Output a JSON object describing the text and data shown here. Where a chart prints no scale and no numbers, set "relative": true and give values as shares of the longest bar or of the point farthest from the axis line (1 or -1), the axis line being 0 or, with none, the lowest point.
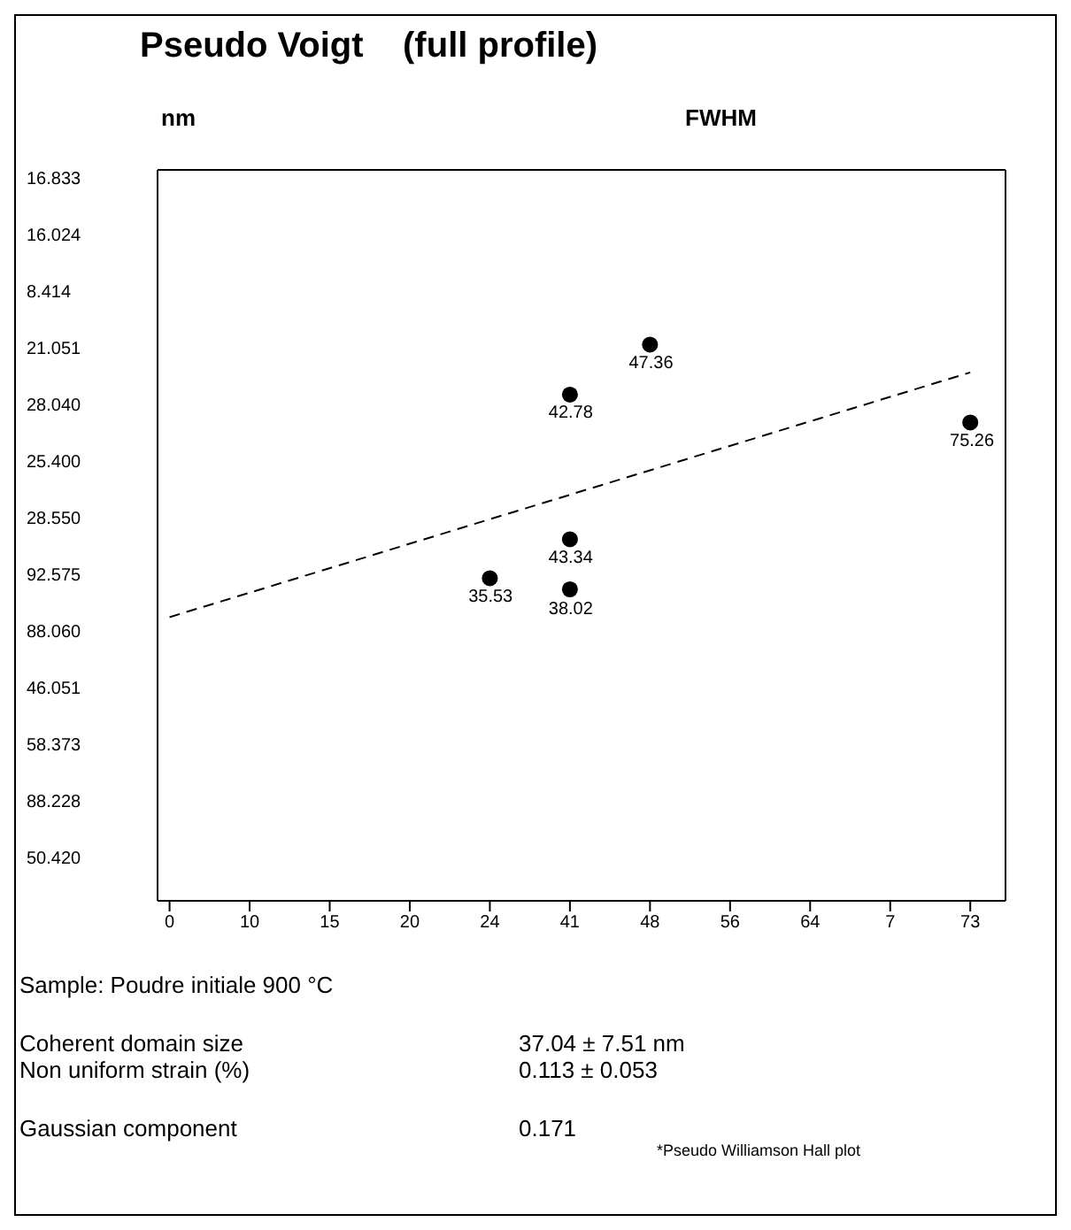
{
  "chart_data": {
    "type": "scatter",
    "title": "Pseudo Voigt    (full profile)",
    "relative": true,
    "categories": [
      "0",
      "10",
      "15",
      "20",
      "24",
      "41",
      "48",
      "56",
      "64",
      "7",
      "73"
    ],
    "grid": false,
    "marker": "circle",
    "series": [
      {
        "color": "#000000",
        "x": [
          "48",
          "41",
          "73",
          "41",
          "24",
          "41"
        ],
        "values": [
          1,
          0.91,
          0.86,
          0.65,
          0.58,
          0.56
        ]
      },
      {
        "type": "line",
        "color": "#000000",
        "line_style": "dashed",
        "marker": "none",
        "x": [
          "0",
          "73"
        ],
        "values": [
          0.51,
          0.95
        ]
      }
    ],
    "annotations": [
      "Sample: Poudre initiale 900 °C",
      "Coherent domain size",
      "37.04 ± 7.51 nm",
      "Non uniform strain (%)",
      "0.113 ± 0.053",
      "Gaussian component",
      "0.171",
      "*Pseudo Williamson Hall plot",
      "16.833",
      "16.024",
      "8.414",
      "21.051",
      "28.040",
      "25.400",
      "28.550",
      "92.575",
      "88.060",
      "46.051",
      "58.373",
      "88.228",
      "50.420",
      "nm",
      "FWHM",
      {
        "text": "47.36",
        "x": "48",
        "y": 1
      },
      {
        "text": "42.78",
        "x": "41",
        "y": 0.91
      },
      {
        "text": "75.26",
        "x": "73",
        "y": 0.86
      },
      {
        "text": "43.34",
        "x": "41",
        "y": 0.65
      },
      {
        "text": "35.53",
        "x": "24",
        "y": 0.58
      },
      {
        "text": "38.02",
        "x": "41",
        "y": 0.56
      }
    ]
  }
}
